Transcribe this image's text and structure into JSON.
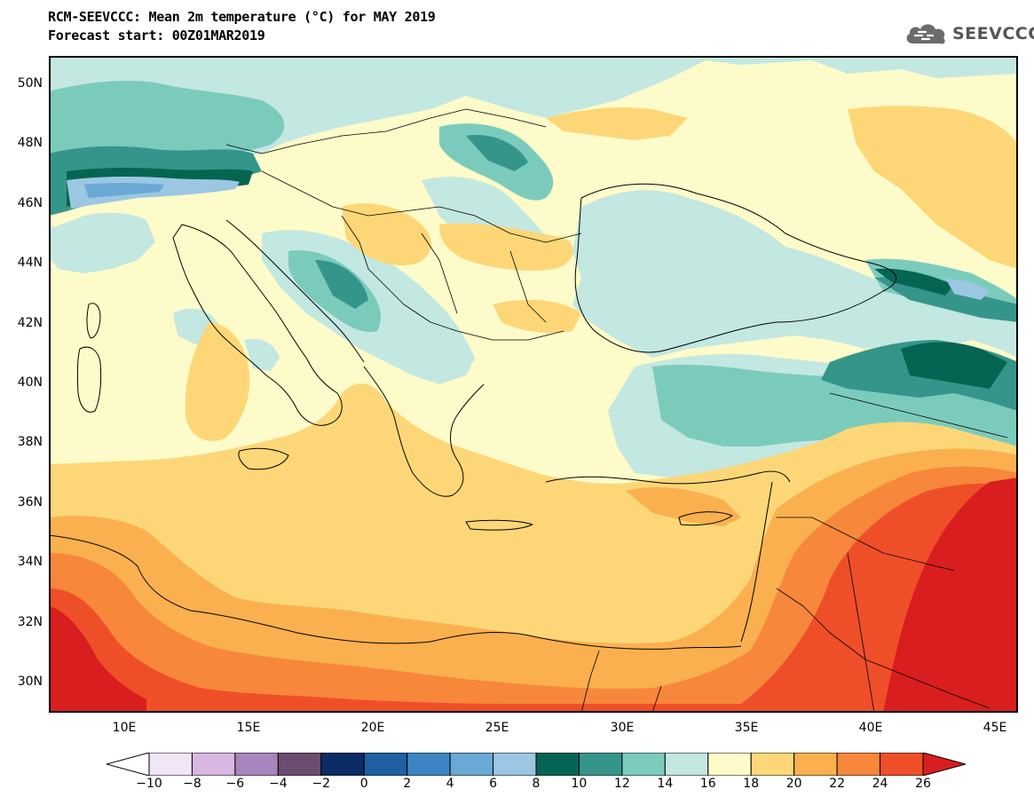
{
  "header": {
    "title": "RCM-SEEVCCC: Mean 2m temperature (°C) for MAY 2019",
    "subtitle": "Forecast start: 00Z01MAR2019",
    "logo_text": "SEEVCCC"
  },
  "map": {
    "lat_labels": [
      "50N",
      "48N",
      "46N",
      "44N",
      "42N",
      "40N",
      "38N",
      "36N",
      "34N",
      "32N",
      "30N"
    ],
    "lon_labels": [
      "10E",
      "15E",
      "20E",
      "25E",
      "30E",
      "35E",
      "40E",
      "45E"
    ]
  },
  "colorbar": {
    "labels": [
      "-10",
      "-8",
      "-6",
      "-4",
      "-2",
      "0",
      "2",
      "4",
      "6",
      "8",
      "10",
      "12",
      "14",
      "16",
      "18",
      "20",
      "22",
      "24",
      "26"
    ],
    "colors": [
      "#ffffff",
      "#f1e6f5",
      "#d8b8e2",
      "#a985bd",
      "#6b4d70",
      "#0b2c64",
      "#1f5fa2",
      "#3b86c2",
      "#6aa8d5",
      "#9bc7e3",
      "#066552",
      "#36958a",
      "#7bcbbd",
      "#c3e7e1",
      "#fdfbc9",
      "#fdd777",
      "#fbb04f",
      "#f7873a",
      "#ef4f28",
      "#d81e1e"
    ]
  }
}
